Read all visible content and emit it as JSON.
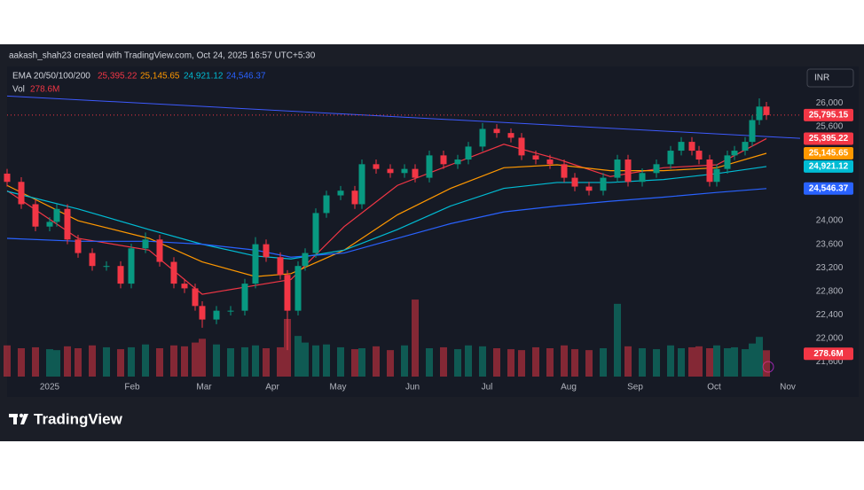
{
  "header": {
    "credit": "aakash_shah23 created with TradingView.com, Oct 24, 2025 16:57 UTC+5:30"
  },
  "chart_data": {
    "type": "candlestick",
    "indicator": "EMA 20/50/100/200",
    "currency": "INR",
    "xlim": [
      0,
      223.5
    ],
    "ylim": [
      21350,
      26170
    ],
    "yticks": [
      {
        "value": 26000,
        "label": "26,000"
      },
      {
        "value": 25600,
        "label": "25,600"
      },
      {
        "value": 24000,
        "label": "24,000"
      },
      {
        "value": 23600,
        "label": "23,600"
      },
      {
        "value": 23200,
        "label": "23,200"
      },
      {
        "value": 22800,
        "label": "22,800"
      },
      {
        "value": 22400,
        "label": "22,400"
      },
      {
        "value": 22000,
        "label": "22,000"
      },
      {
        "value": 21600,
        "label": "21,600"
      }
    ],
    "xticks": [
      {
        "value": 12,
        "label": "2025"
      },
      {
        "value": 35.25,
        "label": "Feb"
      },
      {
        "value": 55.5,
        "label": "Mar"
      },
      {
        "value": 74.75,
        "label": "Apr"
      },
      {
        "value": 93.25,
        "label": "May"
      },
      {
        "value": 114.25,
        "label": "Jun"
      },
      {
        "value": 135.25,
        "label": "Jul"
      },
      {
        "value": 158.25,
        "label": "Aug"
      },
      {
        "value": 177,
        "label": "Sep"
      },
      {
        "value": 199.25,
        "label": "Oct"
      },
      {
        "value": 220,
        "label": "Nov"
      }
    ],
    "up_color": "#089981",
    "down_color": "#f23645",
    "candles": {
      "x": [
        0,
        4,
        8,
        12,
        14,
        17,
        20,
        24,
        28,
        32,
        35,
        39,
        43,
        47,
        50,
        53,
        55,
        59,
        63,
        67,
        70,
        73,
        77,
        79,
        82,
        84,
        87,
        90,
        94,
        98,
        100,
        104,
        108,
        112,
        115,
        119,
        123,
        127,
        130,
        134,
        138,
        142,
        145,
        149,
        153,
        157,
        160,
        164,
        168,
        172,
        175,
        179,
        183,
        187,
        190,
        193,
        195,
        198,
        200,
        203,
        205,
        208,
        210,
        212,
        214
      ],
      "open": [
        24800,
        24660,
        24280,
        23900,
        23980,
        24200,
        23680,
        23450,
        23230,
        23230,
        22930,
        23530,
        23680,
        23300,
        22930,
        22850,
        22550,
        22320,
        22470,
        22470,
        22930,
        23600,
        23380,
        23080,
        22470,
        23230,
        23450,
        24130,
        24430,
        24510,
        24280,
        24960,
        24880,
        24810,
        24880,
        24730,
        25110,
        24960,
        25040,
        25260,
        25560,
        25490,
        25410,
        25110,
        25040,
        24960,
        24730,
        24580,
        24510,
        24730,
        25040,
        24660,
        24810,
        24960,
        25190,
        25340,
        25190,
        25040,
        24660,
        24880,
        25110,
        25190,
        25340,
        25710,
        25940
      ],
      "high": [
        24880,
        24740,
        24360,
        24060,
        24280,
        24280,
        23760,
        23530,
        23310,
        23310,
        23610,
        23800,
        23760,
        23380,
        23010,
        22930,
        22630,
        22550,
        22550,
        23010,
        23720,
        23680,
        23460,
        23160,
        23310,
        23530,
        24210,
        24510,
        24590,
        24590,
        25040,
        25040,
        24960,
        24960,
        24960,
        25190,
        25190,
        25120,
        25340,
        25660,
        25640,
        25570,
        25490,
        25190,
        25120,
        25040,
        24810,
        24660,
        24810,
        25120,
        25120,
        24890,
        25040,
        25270,
        25420,
        25420,
        25270,
        25120,
        24960,
        25190,
        25270,
        25420,
        25790,
        26080,
        26020
      ],
      "low": [
        24580,
        24200,
        23820,
        23820,
        23900,
        23600,
        23370,
        23150,
        23150,
        22850,
        22850,
        23450,
        23220,
        22850,
        22770,
        22470,
        22180,
        22240,
        22390,
        22390,
        22850,
        23300,
        23000,
        21800,
        22390,
        23150,
        23370,
        24050,
        24350,
        24200,
        24200,
        24800,
        24730,
        24730,
        24650,
        24650,
        24880,
        24880,
        24960,
        25180,
        25410,
        25330,
        25030,
        24960,
        24880,
        24650,
        24500,
        24430,
        24430,
        24650,
        24580,
        24580,
        24730,
        24880,
        25110,
        25110,
        24960,
        24580,
        24580,
        24800,
        25030,
        25110,
        25260,
        25630,
        25715
      ],
      "close": [
        24660,
        24280,
        23900,
        23980,
        24200,
        23680,
        23450,
        23230,
        23230,
        22930,
        23530,
        23680,
        23300,
        22930,
        22850,
        22550,
        22320,
        22470,
        22470,
        22930,
        23600,
        23380,
        23080,
        22470,
        23230,
        23450,
        24130,
        24430,
        24510,
        24280,
        24960,
        24880,
        24810,
        24880,
        24730,
        25110,
        24960,
        25040,
        25260,
        25560,
        25490,
        25410,
        25110,
        25040,
        24960,
        24730,
        24580,
        24510,
        24730,
        25040,
        24660,
        24810,
        24960,
        25190,
        25340,
        25190,
        25040,
        24660,
        24880,
        25110,
        25190,
        25340,
        25710,
        25940,
        25795.15
      ]
    },
    "last_price": {
      "value": 25795.15,
      "label": "25,795.15",
      "color": "#f23645"
    },
    "volume": {
      "name": "Vol",
      "ylim": [
        0,
        3000
      ],
      "last_label": "278.6M",
      "values": [
        330,
        300,
        310,
        290,
        280,
        320,
        300,
        330,
        310,
        290,
        310,
        340,
        300,
        330,
        320,
        360,
        400,
        340,
        300,
        310,
        330,
        300,
        310,
        610,
        430,
        360,
        330,
        340,
        310,
        290,
        300,
        320,
        280,
        330,
        815,
        300,
        310,
        290,
        330,
        320,
        300,
        290,
        280,
        310,
        300,
        330,
        290,
        280,
        300,
        770,
        320,
        300,
        290,
        330,
        300,
        310,
        320,
        300,
        330,
        300,
        310,
        290,
        350,
        420,
        278.6
      ]
    },
    "series": [
      {
        "color": "#f23645",
        "x": [
          0,
          20,
          40,
          55,
          70,
          80,
          95,
          110,
          125,
          140,
          155,
          170,
          185,
          200,
          214
        ],
        "values": [
          24510,
          23700,
          23500,
          22750,
          22900,
          23000,
          23900,
          24600,
          24950,
          25300,
          25050,
          24750,
          24900,
          24950,
          25395.22
        ],
        "value_label": "25,395.22"
      },
      {
        "color": "#ff9800",
        "x": [
          0,
          20,
          40,
          55,
          70,
          80,
          95,
          110,
          125,
          140,
          155,
          170,
          185,
          200,
          214
        ],
        "values": [
          24600,
          24000,
          23700,
          23300,
          23050,
          23100,
          23500,
          24100,
          24550,
          24900,
          24950,
          24850,
          24850,
          24900,
          25145.65
        ],
        "value_label": "25,145.65"
      },
      {
        "color": "#00bcd4",
        "x": [
          0,
          20,
          40,
          55,
          70,
          80,
          95,
          110,
          125,
          140,
          155,
          170,
          185,
          200,
          214
        ],
        "values": [
          24500,
          24200,
          23850,
          23600,
          23400,
          23350,
          23500,
          23850,
          24250,
          24550,
          24650,
          24650,
          24700,
          24800,
          24921.12
        ],
        "value_label": "24,921.12"
      },
      {
        "color": "#2962ff",
        "x": [
          0,
          20,
          40,
          55,
          70,
          80,
          95,
          110,
          125,
          140,
          155,
          170,
          185,
          200,
          214
        ],
        "values": [
          23700,
          23650,
          23650,
          23600,
          23500,
          23380,
          23450,
          23700,
          23950,
          24150,
          24250,
          24330,
          24400,
          24480,
          24546.37
        ],
        "value_label": "24,546.37"
      }
    ],
    "trendline": {
      "x": [
        0,
        223.5
      ],
      "values": [
        26120,
        25400
      ],
      "color": "#3d5afe"
    }
  },
  "footer": {
    "brand": "TradingView"
  }
}
